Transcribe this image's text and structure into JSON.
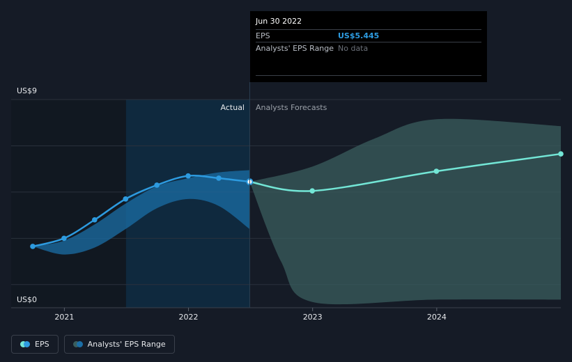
{
  "tooltip": {
    "date": "Jun 30 2022",
    "eps_label": "EPS",
    "eps_value": "US$5.445",
    "range_label": "Analysts' EPS Range",
    "range_value": "No data"
  },
  "legend": {
    "eps_label": "EPS",
    "range_label": "Analysts' EPS Range"
  },
  "colors": {
    "background": "#151b26",
    "past_band": "#0f2a3f",
    "actual_line": "#2d9be0",
    "forecast_line": "#73e6d6",
    "past_range": "#1b6ea6",
    "forecast_range": "#3a5e5e"
  },
  "chart_data": {
    "type": "line",
    "y_min_label": "US$0",
    "y_max_label": "US$9",
    "ylim": [
      0,
      9
    ],
    "xlim": [
      "2020-09-30",
      "2024-12-31"
    ],
    "x_ticks": [
      "2021",
      "2022",
      "2023",
      "2024"
    ],
    "x_tick_dates": [
      "2021-01-01",
      "2022-01-01",
      "2023-01-01",
      "2024-01-01"
    ],
    "actual_label": "Actual",
    "forecast_label": "Analysts Forecasts",
    "split_date": "2022-06-30",
    "grid": true,
    "legend_position": "bottom-left",
    "series": [
      {
        "name": "EPS",
        "points": [
          {
            "x": "2020-09-30",
            "y": 2.65
          },
          {
            "x": "2020-12-31",
            "y": 3.0
          },
          {
            "x": "2021-03-31",
            "y": 3.8
          },
          {
            "x": "2021-06-30",
            "y": 4.7
          },
          {
            "x": "2021-09-30",
            "y": 5.3
          },
          {
            "x": "2021-12-31",
            "y": 5.7
          },
          {
            "x": "2022-03-31",
            "y": 5.6
          },
          {
            "x": "2022-06-30",
            "y": 5.445
          }
        ]
      },
      {
        "name": "EPS forecast",
        "points": [
          {
            "x": "2022-06-30",
            "y": 5.445
          },
          {
            "x": "2022-12-31",
            "y": 5.05
          },
          {
            "x": "2023-12-31",
            "y": 5.9
          },
          {
            "x": "2024-12-31",
            "y": 6.65
          }
        ]
      },
      {
        "name": "Analysts' EPS Range (past)",
        "upper": [
          {
            "x": "2020-09-30",
            "y": 2.65
          },
          {
            "x": "2020-12-31",
            "y": 2.9
          },
          {
            "x": "2021-03-31",
            "y": 3.6
          },
          {
            "x": "2021-06-30",
            "y": 4.5
          },
          {
            "x": "2021-09-30",
            "y": 5.25
          },
          {
            "x": "2021-12-31",
            "y": 5.6
          },
          {
            "x": "2022-03-31",
            "y": 5.85
          },
          {
            "x": "2022-06-30",
            "y": 5.95
          }
        ],
        "lower": [
          {
            "x": "2020-09-30",
            "y": 2.65
          },
          {
            "x": "2020-12-31",
            "y": 2.3
          },
          {
            "x": "2021-03-31",
            "y": 2.6
          },
          {
            "x": "2021-06-30",
            "y": 3.4
          },
          {
            "x": "2021-09-30",
            "y": 4.3
          },
          {
            "x": "2021-12-31",
            "y": 4.7
          },
          {
            "x": "2022-03-31",
            "y": 4.4
          },
          {
            "x": "2022-06-30",
            "y": 3.4
          }
        ]
      },
      {
        "name": "Analysts' EPS Range (forecast)",
        "upper": [
          {
            "x": "2022-06-30",
            "y": 5.445
          },
          {
            "x": "2022-12-31",
            "y": 6.1
          },
          {
            "x": "2023-06-30",
            "y": 7.3
          },
          {
            "x": "2023-12-31",
            "y": 8.15
          },
          {
            "x": "2024-12-31",
            "y": 7.85
          }
        ],
        "lower": [
          {
            "x": "2022-06-30",
            "y": 5.445
          },
          {
            "x": "2022-09-30",
            "y": 2.0
          },
          {
            "x": "2022-12-31",
            "y": 0.25
          },
          {
            "x": "2023-12-31",
            "y": 0.35
          },
          {
            "x": "2024-12-31",
            "y": 0.35
          }
        ]
      }
    ]
  }
}
